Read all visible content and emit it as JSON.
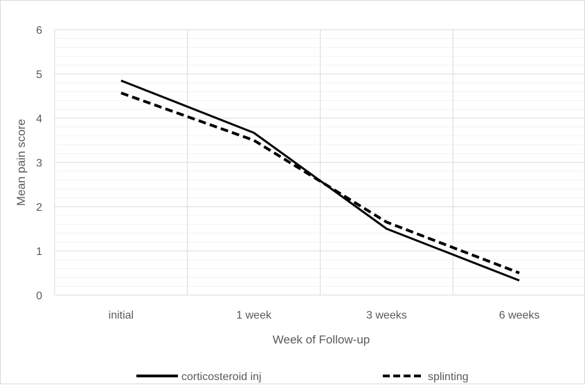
{
  "chart_data": {
    "type": "line",
    "title": "",
    "xlabel": "Week of Follow-up",
    "ylabel": "Mean pain score",
    "categories": [
      "initial",
      "1 week",
      "3 weeks",
      "6 weeks"
    ],
    "ylim": [
      0,
      6
    ],
    "yticks": [
      "0",
      "1",
      "2",
      "3",
      "4",
      "5",
      "6"
    ],
    "grid": true,
    "legend_position": "bottom",
    "series": [
      {
        "name": "corticosteroid inj",
        "values": [
          4.85,
          3.67,
          1.5,
          0.33
        ],
        "color": "#000000",
        "dash": "solid"
      },
      {
        "name": "splinting",
        "values": [
          4.57,
          3.5,
          1.65,
          0.5
        ],
        "color": "#000000",
        "dash": "dashed"
      }
    ]
  }
}
